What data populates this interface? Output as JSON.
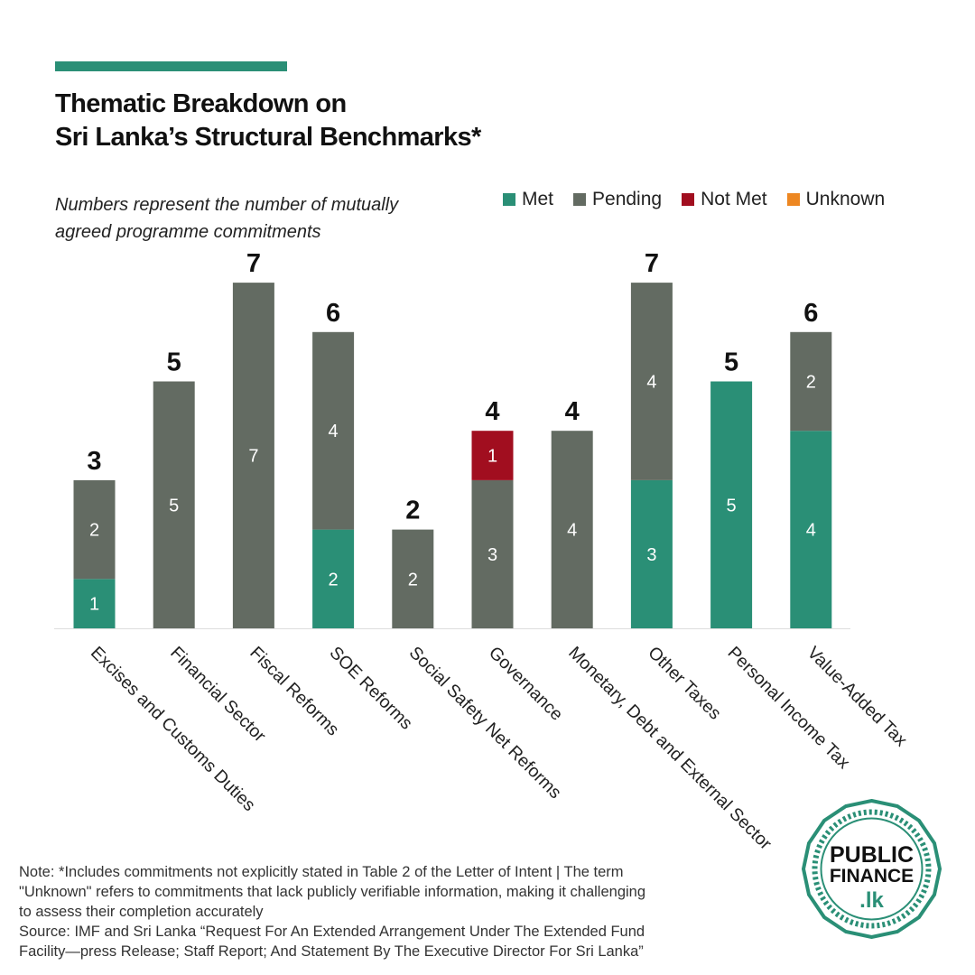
{
  "title": {
    "line1": "Thematic Breakdown on",
    "line2": "Sri Lanka’s Structural Benchmarks*"
  },
  "subtitle": {
    "line1": "Numbers represent the number of mutually",
    "line2": "agreed programme commitments"
  },
  "colors": {
    "met": "#2a8f76",
    "pending": "#636b62",
    "not_met": "#a10e1f",
    "unknown": "#ed8722",
    "accent": "#2a8f76"
  },
  "chart_data": {
    "type": "bar",
    "stacked": true,
    "categories": [
      "Excises and Customs Duties",
      "Financial Sector",
      "Fiscal Reforms",
      "SOE Reforms",
      "Social Safety Net Reforms",
      "Governance",
      "Monetary, Debt and External Sector",
      "Other Taxes",
      "Personal Income Tax",
      "Value-Added Tax"
    ],
    "series": [
      {
        "name": "Met",
        "values": [
          1,
          0,
          0,
          2,
          0,
          0,
          0,
          3,
          5,
          4
        ]
      },
      {
        "name": "Pending",
        "values": [
          2,
          5,
          7,
          4,
          2,
          3,
          4,
          4,
          0,
          2
        ]
      },
      {
        "name": "Not Met",
        "values": [
          0,
          0,
          0,
          0,
          0,
          1,
          0,
          0,
          0,
          0
        ]
      },
      {
        "name": "Unknown",
        "values": [
          0,
          0,
          0,
          0,
          0,
          0,
          0,
          0,
          0,
          0
        ]
      }
    ],
    "totals": [
      3,
      5,
      7,
      6,
      2,
      4,
      4,
      7,
      5,
      6
    ],
    "ylim": [
      0,
      7
    ],
    "legend_position": "top-right",
    "grid": false
  },
  "note": {
    "line1": "Note: *Includes  commitments not explicitly stated in Table 2 of the Letter of Intent | The term",
    "line2": "\"Unknown\" refers to commitments that lack publicly verifiable information, making it challenging",
    "line3": "to assess their completion accurately",
    "line4": "Source: IMF and Sri Lanka “Request For An Extended Arrangement Under The Extended Fund",
    "line5": "Facility—press Release; Staff Report; And Statement By The Executive Director For Sri Lanka”"
  },
  "logo": {
    "line1": "PUBLIC",
    "line2": "FINANCE",
    "line3": ".lk"
  }
}
